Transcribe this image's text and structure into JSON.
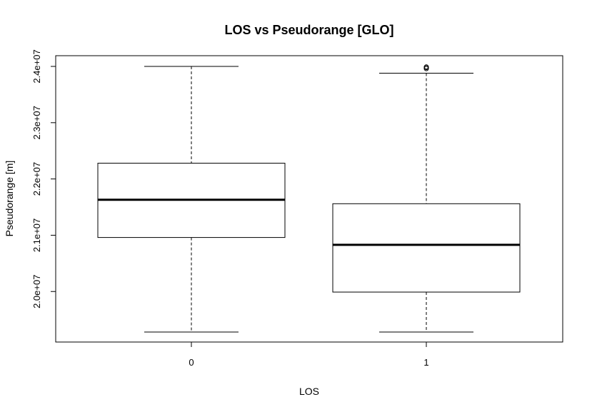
{
  "chart_data": {
    "type": "boxplot",
    "title": "LOS vs Pseudorange [GLO]",
    "xlabel": "LOS",
    "ylabel": "Pseudorange [m]",
    "categories": [
      "0",
      "1"
    ],
    "ylim": [
      19150000,
      24200000
    ],
    "yticks": [
      {
        "value": 20000000,
        "label": "2.0e+07"
      },
      {
        "value": 21000000,
        "label": "2.1e+07"
      },
      {
        "value": 22000000,
        "label": "2.2e+07"
      },
      {
        "value": 23000000,
        "label": "2.3e+07"
      },
      {
        "value": 24000000,
        "label": "2.4e+07"
      }
    ],
    "boxes": [
      {
        "category": "0",
        "whisker_low": 19280000,
        "q1": 20960000,
        "median": 21630000,
        "q3": 22280000,
        "whisker_high": 24000000,
        "outliers": []
      },
      {
        "category": "1",
        "whisker_low": 19280000,
        "q1": 19990000,
        "median": 20830000,
        "q3": 21560000,
        "whisker_high": 23880000,
        "outliers": [
          23960000,
          23980000,
          23990000
        ]
      }
    ],
    "grid": false
  }
}
